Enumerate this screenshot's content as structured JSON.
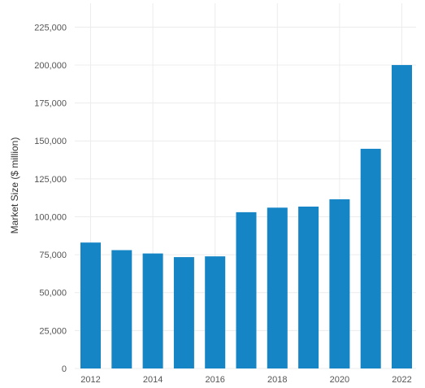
{
  "chart_data": {
    "type": "bar",
    "title": "",
    "xlabel": "",
    "ylabel": "Market Size ($ million)",
    "categories": [
      "2012",
      "2013",
      "2014",
      "2015",
      "2016",
      "2017",
      "2018",
      "2019",
      "2020",
      "2021",
      "2022"
    ],
    "x_tick_labels": [
      "2012",
      "2014",
      "2016",
      "2018",
      "2020",
      "2022"
    ],
    "values": [
      83000,
      78000,
      75800,
      73400,
      73900,
      103000,
      106000,
      106700,
      111500,
      144800,
      200000
    ],
    "ylim": [
      0,
      237500
    ],
    "y_ticks": [
      0,
      25000,
      50000,
      75000,
      100000,
      125000,
      150000,
      175000,
      200000,
      225000
    ],
    "y_tick_labels": [
      "0",
      "25,000",
      "50,000",
      "75,000",
      "100,000",
      "125,000",
      "150,000",
      "175,000",
      "200,000",
      "225,000"
    ],
    "grid": true,
    "legend": "none",
    "colors": {
      "bar": "#1585c5",
      "grid": "#ececec",
      "text": "#555555"
    }
  }
}
